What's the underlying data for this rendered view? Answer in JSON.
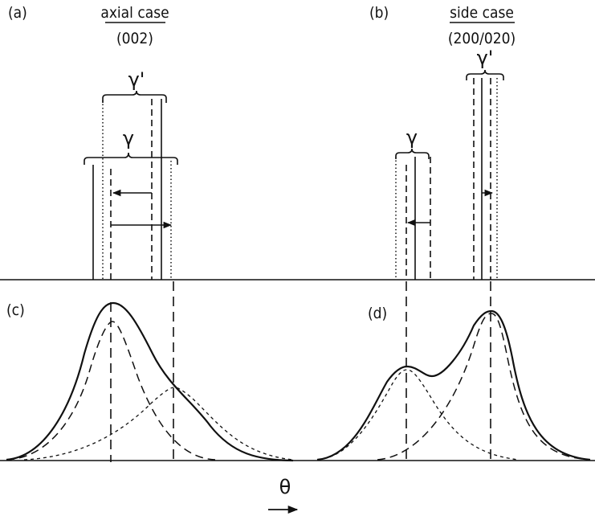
{
  "panels": {
    "a": {
      "tag": "(a)",
      "title": "axial case",
      "miller": "(002)"
    },
    "b": {
      "tag": "(b)",
      "title": "side case",
      "miller": "(200/020)"
    },
    "c": {
      "tag": "(c)"
    },
    "d": {
      "tag": "(d)"
    }
  },
  "phases": {
    "gamma": "γ",
    "gamma_prime": "γ'"
  },
  "axis": {
    "variable": "θ"
  }
}
